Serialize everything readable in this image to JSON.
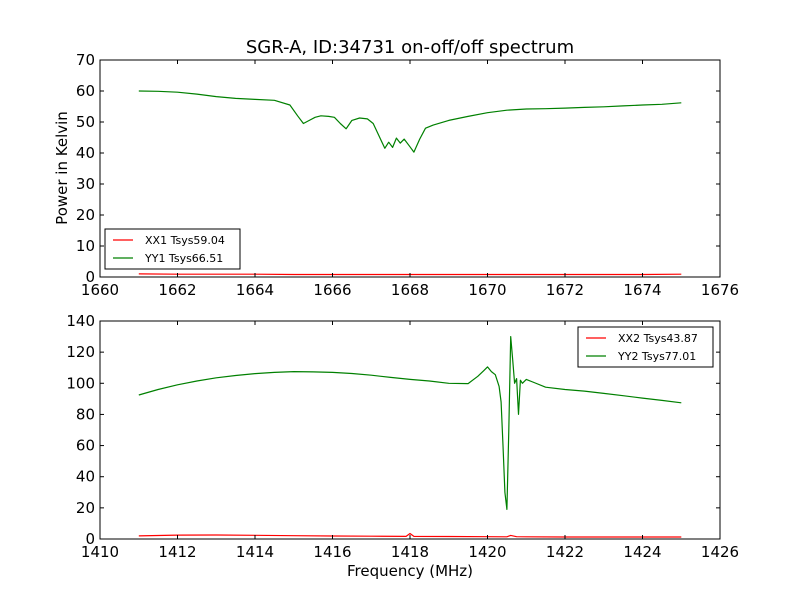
{
  "title": "SGR-A, ID:34731 on-off/off spectrum",
  "xlabel": "Frequency (MHz)",
  "ylabel": "Power in Kelvin",
  "colors": {
    "red": "#ff0000",
    "green": "#008000",
    "axes": "#000000"
  },
  "chart_data": [
    {
      "type": "line",
      "xlim": [
        1660,
        1676
      ],
      "ylim": [
        0,
        70
      ],
      "xticks": [
        1660,
        1662,
        1664,
        1666,
        1668,
        1670,
        1672,
        1674,
        1676
      ],
      "yticks": [
        0,
        10,
        20,
        30,
        40,
        50,
        60,
        70
      ],
      "ylabel": "Power in Kelvin",
      "legend_position": "lower-left",
      "grid": false,
      "series": [
        {
          "name": "XX1 Tsys59.04",
          "color": "#ff0000",
          "x": [
            1661.0,
            1662.0,
            1663.0,
            1664.0,
            1665.0,
            1666.0,
            1667.0,
            1668.0,
            1669.0,
            1670.0,
            1671.0,
            1672.0,
            1673.0,
            1674.0,
            1675.0
          ],
          "y": [
            1.0,
            0.9,
            0.9,
            0.9,
            0.8,
            0.8,
            0.8,
            0.8,
            0.8,
            0.8,
            0.8,
            0.8,
            0.8,
            0.8,
            0.9
          ]
        },
        {
          "name": "YY1 Tsys66.51",
          "color": "#008000",
          "x": [
            1661.0,
            1661.5,
            1662.0,
            1662.5,
            1663.0,
            1663.5,
            1664.0,
            1664.5,
            1664.9,
            1665.1,
            1665.25,
            1665.4,
            1665.55,
            1665.7,
            1665.9,
            1666.05,
            1666.2,
            1666.35,
            1666.5,
            1666.7,
            1666.9,
            1667.05,
            1667.2,
            1667.35,
            1667.45,
            1667.55,
            1667.65,
            1667.75,
            1667.85,
            1668.0,
            1668.1,
            1668.25,
            1668.4,
            1668.6,
            1669.0,
            1669.5,
            1670.0,
            1670.5,
            1671.0,
            1671.5,
            1672.0,
            1672.5,
            1673.0,
            1673.5,
            1674.0,
            1674.5,
            1675.0
          ],
          "y": [
            60.0,
            59.9,
            59.6,
            59.0,
            58.2,
            57.6,
            57.3,
            57.0,
            55.5,
            52.0,
            49.5,
            50.5,
            51.5,
            52.0,
            51.8,
            51.5,
            49.5,
            47.8,
            50.5,
            51.3,
            51.0,
            49.5,
            45.5,
            41.5,
            43.5,
            41.8,
            44.8,
            43.2,
            44.5,
            42.0,
            40.3,
            44.5,
            48.0,
            49.0,
            50.5,
            51.8,
            53.0,
            53.8,
            54.2,
            54.3,
            54.5,
            54.7,
            54.9,
            55.2,
            55.5,
            55.7,
            56.2
          ]
        }
      ]
    },
    {
      "type": "line",
      "xlim": [
        1410,
        1426
      ],
      "ylim": [
        0,
        140
      ],
      "xticks": [
        1410,
        1412,
        1414,
        1416,
        1418,
        1420,
        1422,
        1424,
        1426
      ],
      "yticks": [
        0,
        20,
        40,
        60,
        80,
        100,
        120,
        140
      ],
      "xlabel": "Frequency (MHz)",
      "legend_position": "upper-right",
      "grid": false,
      "series": [
        {
          "name": "XX2 Tsys43.87",
          "color": "#ff0000",
          "x": [
            1411.0,
            1412.0,
            1413.0,
            1414.0,
            1415.0,
            1416.0,
            1417.0,
            1417.9,
            1418.0,
            1418.1,
            1419.0,
            1420.0,
            1420.5,
            1420.6,
            1420.75,
            1421.0,
            1422.0,
            1423.0,
            1424.0,
            1425.0
          ],
          "y": [
            2.0,
            2.5,
            2.6,
            2.4,
            2.1,
            1.9,
            1.8,
            1.7,
            3.5,
            1.7,
            1.6,
            1.5,
            1.4,
            2.3,
            1.5,
            1.4,
            1.3,
            1.3,
            1.3,
            1.3
          ]
        },
        {
          "name": "YY2 Tsys77.01",
          "color": "#008000",
          "x": [
            1411.0,
            1411.5,
            1412.0,
            1412.5,
            1413.0,
            1413.5,
            1414.0,
            1414.5,
            1415.0,
            1415.5,
            1416.0,
            1416.5,
            1417.0,
            1417.5,
            1418.0,
            1418.5,
            1419.0,
            1419.5,
            1419.75,
            1419.9,
            1420.0,
            1420.1,
            1420.2,
            1420.3,
            1420.35,
            1420.4,
            1420.45,
            1420.5,
            1420.55,
            1420.6,
            1420.65,
            1420.7,
            1420.75,
            1420.8,
            1420.85,
            1420.9,
            1421.0,
            1421.2,
            1421.5,
            1422.0,
            1422.5,
            1423.0,
            1423.5,
            1424.0,
            1424.5,
            1425.0
          ],
          "y": [
            92.5,
            96.0,
            99.0,
            101.5,
            103.5,
            105.0,
            106.2,
            107.0,
            107.5,
            107.3,
            107.0,
            106.3,
            105.2,
            103.8,
            102.5,
            101.5,
            100.0,
            99.8,
            104.5,
            108.0,
            110.5,
            107.5,
            105.5,
            98.0,
            88.0,
            60.0,
            30.0,
            19.0,
            70.0,
            130.0,
            115.0,
            100.0,
            103.0,
            80.0,
            102.0,
            100.0,
            102.5,
            100.5,
            97.5,
            96.0,
            95.0,
            93.5,
            92.0,
            90.5,
            89.0,
            87.5
          ]
        }
      ]
    }
  ]
}
